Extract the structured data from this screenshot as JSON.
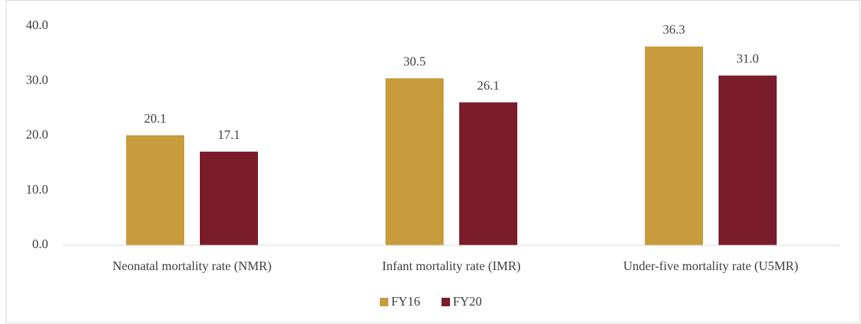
{
  "chart_data": {
    "type": "bar",
    "categories": [
      "Neonatal mortality rate (NMR)",
      "Infant mortality rate (IMR)",
      "Under-five mortality rate (U5MR)"
    ],
    "series": [
      {
        "name": "FY16",
        "color": "#c89b3c",
        "values": [
          20.1,
          30.5,
          36.3
        ],
        "value_labels": [
          "20.1",
          "30.5",
          "36.3"
        ]
      },
      {
        "name": "FY20",
        "color": "#7b1c2a",
        "values": [
          17.1,
          26.1,
          31.0
        ],
        "value_labels": [
          "17.1",
          "26.1",
          "31.0"
        ]
      }
    ],
    "ylim": [
      0,
      40
    ],
    "yticks": [
      {
        "value": 0,
        "label": "0.0"
      },
      {
        "value": 10,
        "label": "10.0"
      },
      {
        "value": 20,
        "label": "20.0"
      },
      {
        "value": 30,
        "label": "30.0"
      },
      {
        "value": 40,
        "label": "40.0"
      }
    ],
    "grid": false,
    "legend": "bottom"
  }
}
